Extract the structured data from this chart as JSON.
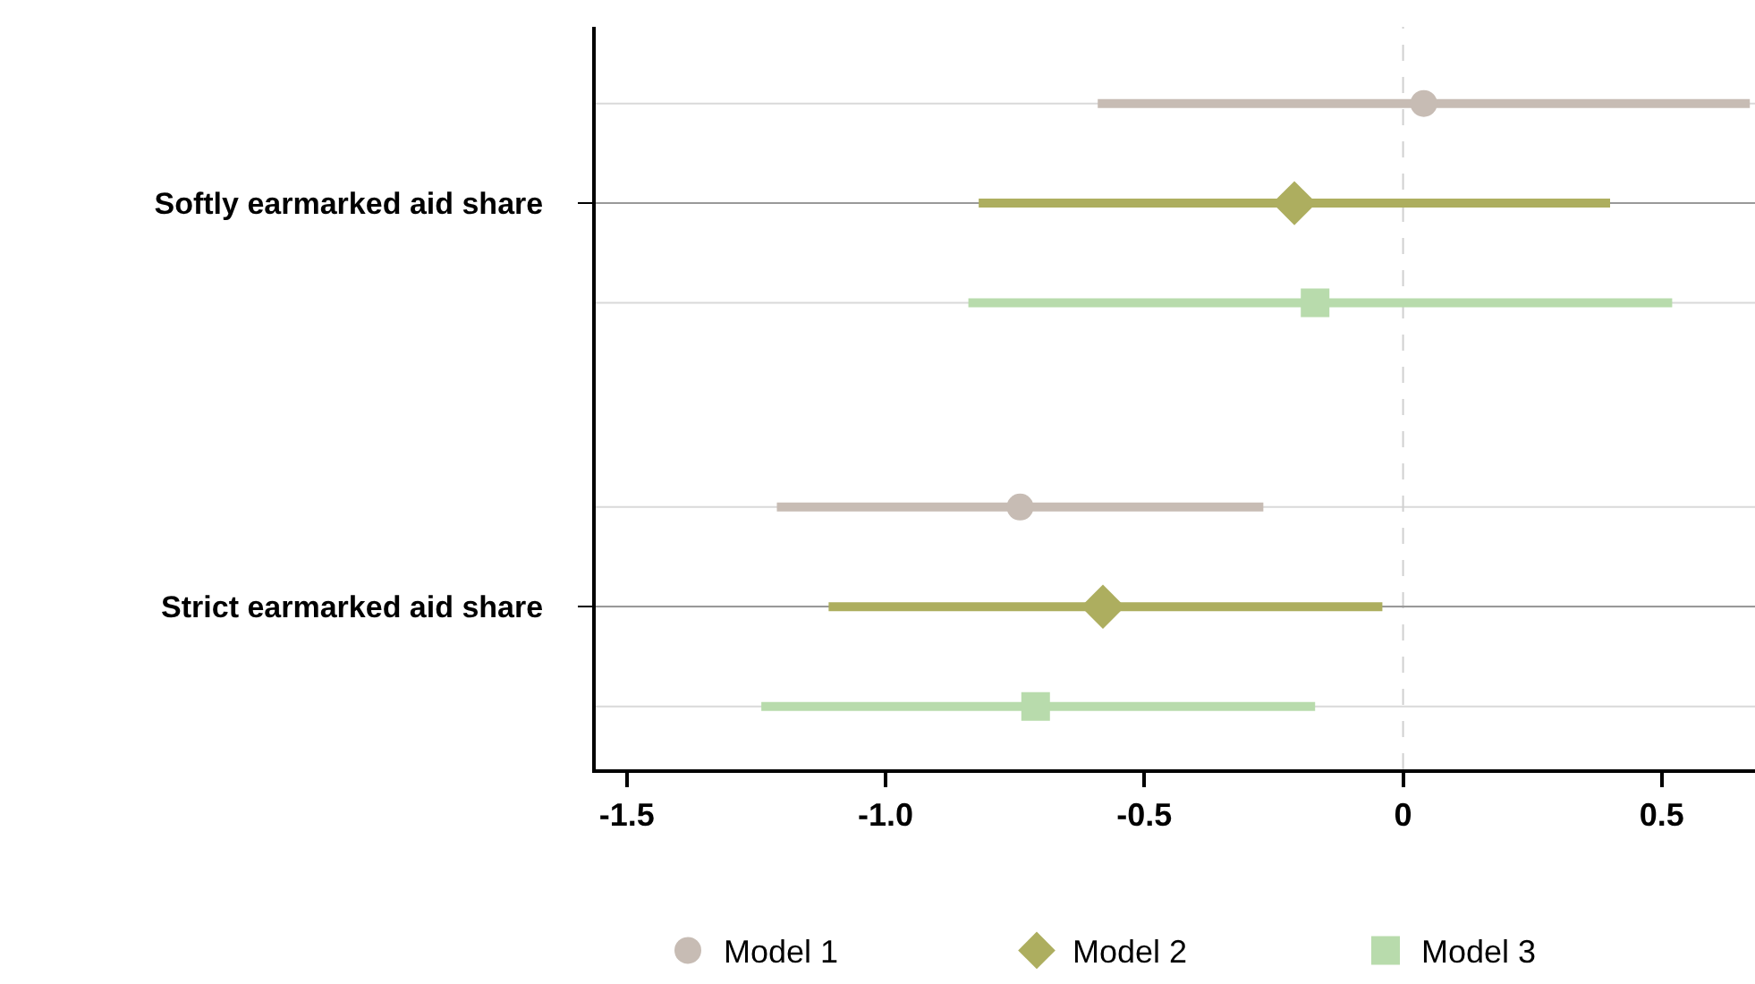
{
  "chart_data": {
    "type": "scatter",
    "orientation": "horizontal",
    "categories": [
      "Softly earmarked aid share",
      "Strict earmarked aid share"
    ],
    "series": [
      {
        "name": "Model 1",
        "color": "#c7bcb4",
        "marker": "circle",
        "values": [
          0.04,
          -0.74
        ],
        "errors": [
          [
            -0.59,
            0.67
          ],
          [
            -1.21,
            -0.27
          ]
        ]
      },
      {
        "name": "Model 2",
        "color": "#adae5f",
        "marker": "diamond",
        "values": [
          -0.21,
          -0.58
        ],
        "errors": [
          [
            -0.82,
            0.4
          ],
          [
            -1.11,
            -0.04
          ]
        ]
      },
      {
        "name": "Model 3",
        "color": "#b8dbac",
        "marker": "square",
        "values": [
          -0.17,
          -0.71
        ],
        "errors": [
          [
            -0.84,
            0.52
          ],
          [
            -1.24,
            -0.17
          ]
        ]
      }
    ],
    "xlim": [
      -1.56,
      0.68
    ],
    "xticks": [
      -1.5,
      {
        "value": -1,
        "label": "-1.0"
      },
      -0.5,
      0,
      0.5
    ],
    "ref_lines": [
      {
        "axis": "x",
        "value": 0,
        "color": "#d0d0d0",
        "line_style": "dashed"
      }
    ],
    "grid": "y",
    "legend": "bottom"
  }
}
